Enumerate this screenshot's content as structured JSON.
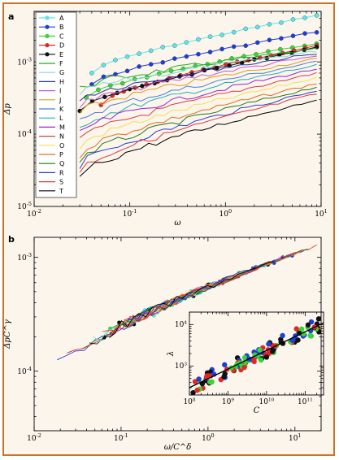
{
  "chart_data": [
    {
      "panel_label": "a",
      "type": "line",
      "xlabel": "ω",
      "ylabel": "Δp",
      "xscale": "log",
      "yscale": "log",
      "xlim": [
        0.01,
        10
      ],
      "ylim": [
        1e-05,
        0.005
      ],
      "x_ticks": [
        {
          "v": 0.01,
          "base": "10",
          "exp": "-2"
        },
        {
          "v": 0.1,
          "base": "10",
          "exp": "-1"
        },
        {
          "v": 1,
          "base": "10",
          "exp": "0"
        },
        {
          "v": 10,
          "base": "10",
          "exp": "1"
        }
      ],
      "y_ticks": [
        {
          "v": 1e-05,
          "base": "10",
          "exp": "-5"
        },
        {
          "v": 0.0001,
          "base": "10",
          "exp": "-4"
        },
        {
          "v": 0.001,
          "base": "10",
          "exp": "-3"
        }
      ],
      "legend_position": "upper-left",
      "series": [
        {
          "name": "A",
          "color": "#5ce6ea",
          "marker": true,
          "x": [
            0.04,
            9
          ],
          "y": [
            0.0007,
            0.0044
          ]
        },
        {
          "name": "B",
          "color": "#1f3ed6",
          "marker": true,
          "x": [
            0.04,
            9
          ],
          "y": [
            0.00048,
            0.0026
          ]
        },
        {
          "name": "C",
          "color": "#39d33a",
          "marker": true,
          "x": [
            0.035,
            9
          ],
          "y": [
            0.00032,
            0.0018
          ]
        },
        {
          "name": "D",
          "color": "#e02828",
          "marker": true,
          "x": [
            0.05,
            9
          ],
          "y": [
            0.00026,
            0.0017
          ]
        },
        {
          "name": "E",
          "color": "#111111",
          "marker": true,
          "x": [
            0.03,
            9
          ],
          "y": [
            0.00021,
            0.0016
          ]
        },
        {
          "name": "F",
          "color": "#22aa22",
          "marker": false,
          "x": [
            0.03,
            9
          ],
          "y": [
            0.00042,
            0.0015
          ]
        },
        {
          "name": "G",
          "color": "#7fd8e0",
          "marker": false,
          "x": [
            0.03,
            9
          ],
          "y": [
            0.00036,
            0.0014
          ]
        },
        {
          "name": "H",
          "color": "#2233aa",
          "marker": false,
          "x": [
            0.03,
            9
          ],
          "y": [
            0.0003,
            0.0013
          ]
        },
        {
          "name": "I",
          "color": "#c85ac8",
          "marker": false,
          "x": [
            0.03,
            9
          ],
          "y": [
            0.00024,
            0.0012
          ]
        },
        {
          "name": "J",
          "color": "#d9a020",
          "marker": false,
          "x": [
            0.03,
            9
          ],
          "y": [
            0.00019,
            0.0011
          ]
        },
        {
          "name": "K",
          "color": "#4a7fd9",
          "marker": false,
          "x": [
            0.03,
            9
          ],
          "y": [
            0.00015,
            0.001
          ]
        },
        {
          "name": "L",
          "color": "#20b0b0",
          "marker": false,
          "x": [
            0.03,
            9
          ],
          "y": [
            0.00012,
            0.0009
          ]
        },
        {
          "name": "M",
          "color": "#a020d0",
          "marker": false,
          "x": [
            0.03,
            9
          ],
          "y": [
            0.0001,
            0.0008
          ]
        },
        {
          "name": "N",
          "color": "#d04040",
          "marker": false,
          "x": [
            0.03,
            9
          ],
          "y": [
            8e-05,
            0.0007
          ]
        },
        {
          "name": "O",
          "color": "#f0e04a",
          "marker": false,
          "x": [
            0.03,
            9
          ],
          "y": [
            6.5e-05,
            0.0006
          ]
        },
        {
          "name": "P",
          "color": "#e07020",
          "marker": false,
          "x": [
            0.03,
            9
          ],
          "y": [
            5.2e-05,
            0.0005
          ]
        },
        {
          "name": "Q",
          "color": "#1b7a1b",
          "marker": false,
          "x": [
            0.03,
            9
          ],
          "y": [
            4.2e-05,
            0.00045
          ]
        },
        {
          "name": "R",
          "color": "#2a3ad0",
          "marker": false,
          "x": [
            0.03,
            9
          ],
          "y": [
            3.5e-05,
            0.0004
          ]
        },
        {
          "name": "S",
          "color": "#e03a3a",
          "marker": false,
          "x": [
            0.03,
            9
          ],
          "y": [
            3e-05,
            0.00036
          ]
        },
        {
          "name": "T",
          "color": "#000000",
          "marker": false,
          "x": [
            0.03,
            9
          ],
          "y": [
            2.5e-05,
            0.0003
          ]
        }
      ]
    },
    {
      "panel_label": "b",
      "type": "line",
      "xlabel": "ω/C^δ",
      "ylabel": "ΔpC^γ",
      "xscale": "log",
      "yscale": "log",
      "xlim": [
        0.01,
        20
      ],
      "ylim": [
        3e-05,
        0.0015
      ],
      "x_ticks": [
        {
          "v": 0.01,
          "base": "10",
          "exp": "-2"
        },
        {
          "v": 0.1,
          "base": "10",
          "exp": "-1"
        },
        {
          "v": 1,
          "base": "10",
          "exp": "0"
        },
        {
          "v": 10,
          "base": "10",
          "exp": "1"
        }
      ],
      "y_ticks": [
        {
          "v": 0.0001,
          "base": "10",
          "exp": "-4"
        },
        {
          "v": 0.001,
          "base": "10",
          "exp": "-3"
        }
      ],
      "collapse_curve": {
        "x": [
          0.01,
          20
        ],
        "y": [
          7e-05,
          0.0013
        ]
      }
    },
    {
      "panel_label": "inset",
      "type": "scatter",
      "xlabel": "C",
      "ylabel": "λ",
      "xscale": "log",
      "yscale": "log",
      "xlim": [
        100000000,
        300000000000
      ],
      "ylim": [
        200,
        20000
      ],
      "x_ticks": [
        {
          "v": 100000000,
          "base": "10",
          "exp": "8"
        },
        {
          "v": 1000000000,
          "base": "10",
          "exp": "9"
        },
        {
          "v": 10000000000,
          "base": "10",
          "exp": "10"
        },
        {
          "v": 100000000000,
          "base": "10",
          "exp": "11"
        }
      ],
      "y_ticks": [
        {
          "v": 1000,
          "base": "10",
          "exp": "3"
        },
        {
          "v": 10000,
          "base": "10",
          "exp": "4"
        }
      ],
      "fit_line": {
        "x": [
          100000000,
          300000000000
        ],
        "y": [
          300,
          11000
        ]
      },
      "point_colors": [
        "#111111",
        "#1f3ed6",
        "#39d33a",
        "#e02828"
      ]
    }
  ]
}
